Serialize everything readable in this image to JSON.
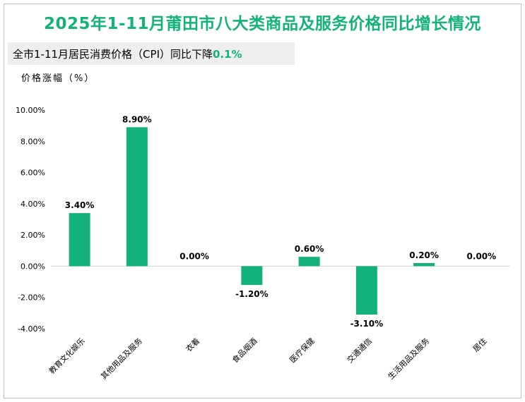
{
  "title": "2025年1-11月莆田市八大类商品及服务价格同比增长情况",
  "subtitle": {
    "prefix": "全市1-11月居民消费价格（CPI）同比下降",
    "value": "0.1%"
  },
  "chart_data": {
    "type": "bar",
    "ylabel": "价格涨幅（%）",
    "ylim": [
      -4,
      10
    ],
    "yticks": [
      10,
      8,
      6,
      4,
      2,
      0,
      -2,
      -4
    ],
    "ytick_labels": [
      "10.00%",
      "8.00%",
      "6.00%",
      "4.00%",
      "2.00%",
      "0.00%",
      "-2.00%",
      "-4.00%"
    ],
    "categories": [
      "教育文化娱乐",
      "其他用品及服务",
      "衣着",
      "食品烟酒",
      "医疗保健",
      "交通通信",
      "生活用品及服务",
      "居住"
    ],
    "values": [
      3.4,
      8.9,
      0.0,
      -1.2,
      0.6,
      -3.1,
      0.2,
      0.0
    ],
    "value_labels": [
      "3.40%",
      "8.90%",
      "0.00%",
      "-1.20%",
      "0.60%",
      "-3.10%",
      "0.20%",
      "0.00%"
    ],
    "bar_color": "#13b27a",
    "grid": false
  }
}
